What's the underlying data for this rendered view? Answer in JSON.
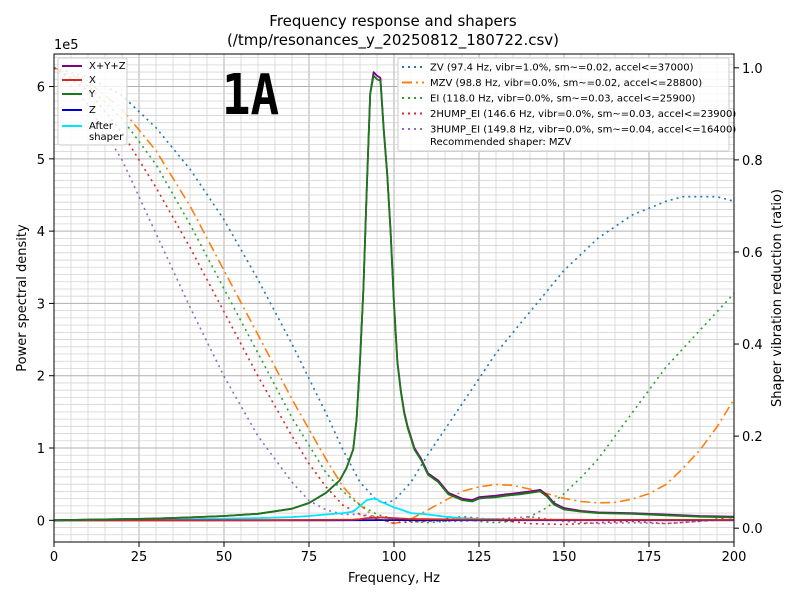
{
  "chart_data": {
    "type": "line",
    "title_line1": "Frequency response and shapers",
    "title_line2": "(/tmp/resonances_y_20250812_180722.csv)",
    "xlabel": "Frequency, Hz",
    "ylabel": "Power spectral density",
    "y2label": "Shaper vibration reduction (ratio)",
    "xlim": [
      0,
      200
    ],
    "ylim": [
      -0.3,
      6.45
    ],
    "y2lim": [
      -0.03,
      1.03
    ],
    "y_multiplier": "1e5",
    "annotation": "1A",
    "xticks": [
      "0",
      "25",
      "50",
      "75",
      "100",
      "125",
      "150",
      "175",
      "200"
    ],
    "xtick_values": [
      0,
      25,
      50,
      75,
      100,
      125,
      150,
      175,
      200
    ],
    "yticks": [
      "0",
      "1",
      "2",
      "3",
      "4",
      "5",
      "6"
    ],
    "ytick_values": [
      0,
      1,
      2,
      3,
      4,
      5,
      6
    ],
    "y2ticks": [
      "0.0",
      "0.2",
      "0.4",
      "0.6",
      "0.8",
      "1.0"
    ],
    "y2tick_values": [
      0,
      0.2,
      0.4,
      0.6,
      0.8,
      1.0
    ],
    "psd_legend": [
      {
        "label": "X+Y+Z",
        "color": "#800080"
      },
      {
        "label": "X",
        "color": "#d62728"
      },
      {
        "label": "Y",
        "color": "#1a7a1a"
      },
      {
        "label": "Z",
        "color": "#0000cc"
      },
      {
        "label": "After\nshaper",
        "color": "#00e5ff"
      }
    ],
    "shaper_legend": [
      {
        "label": "ZV (97.4 Hz, vibr=1.0%, sm~=0.02, accel<=37000)",
        "color": "#1f77b4",
        "dash": "dotted"
      },
      {
        "label": "MZV (98.8 Hz, vibr=0.0%, sm~=0.02, accel<=28800)",
        "color": "#ff7f0e",
        "dash": "dashdot"
      },
      {
        "label": "EI (118.0 Hz, vibr=0.0%, sm~=0.03, accel<=25900)",
        "color": "#2ca02c",
        "dash": "dotted"
      },
      {
        "label": "2HUMP_EI (146.6 Hz, vibr=0.0%, sm~=0.03, accel<=23900)",
        "color": "#d62728",
        "dash": "dotted"
      },
      {
        "label": "3HUMP_EI (149.8 Hz, vibr=0.0%, sm~=0.04, accel<=16400)",
        "color": "#9467bd",
        "dash": "dotted"
      }
    ],
    "recommended": "Recommended shaper: MZV",
    "series": [
      {
        "name": "X+Y+Z",
        "axis": "left",
        "color": "#800080",
        "x": [
          0,
          10,
          20,
          30,
          40,
          50,
          60,
          70,
          75,
          80,
          84,
          86,
          88,
          89,
          90,
          91,
          92,
          93,
          94,
          95,
          96,
          97,
          98,
          99,
          100,
          101,
          102,
          103,
          104,
          105,
          106,
          108,
          110,
          113,
          116,
          120,
          123,
          125,
          127,
          130,
          133,
          137,
          140,
          143,
          145,
          147,
          150,
          155,
          160,
          170,
          180,
          190,
          200
        ],
        "y": [
          0,
          0.01,
          0.015,
          0.025,
          0.04,
          0.06,
          0.09,
          0.16,
          0.24,
          0.38,
          0.55,
          0.72,
          0.98,
          1.4,
          2.2,
          3.2,
          4.6,
          5.9,
          6.2,
          6.15,
          6.12,
          5.4,
          4.8,
          4.0,
          3.0,
          2.2,
          1.8,
          1.5,
          1.3,
          1.15,
          1.0,
          0.85,
          0.65,
          0.55,
          0.38,
          0.3,
          0.28,
          0.32,
          0.33,
          0.34,
          0.36,
          0.38,
          0.4,
          0.42,
          0.35,
          0.24,
          0.17,
          0.13,
          0.11,
          0.1,
          0.08,
          0.06,
          0.05
        ]
      },
      {
        "name": "X",
        "axis": "left",
        "color": "#d62728",
        "x": [
          0,
          20,
          40,
          60,
          80,
          88,
          90,
          92,
          94,
          96,
          98,
          100,
          102,
          104,
          106,
          110,
          120,
          140,
          160,
          180,
          200
        ],
        "y": [
          0,
          0,
          0,
          0.002,
          0.005,
          0.01,
          0.015,
          0.03,
          0.035,
          0.04,
          0.035,
          0.03,
          0.025,
          0.02,
          0.018,
          0.015,
          0.01,
          0.008,
          0.006,
          0.005,
          0.004
        ]
      },
      {
        "name": "Y",
        "axis": "left",
        "color": "#1a7a1a",
        "x": [
          0,
          10,
          20,
          30,
          40,
          50,
          60,
          70,
          75,
          80,
          84,
          86,
          88,
          89,
          90,
          91,
          92,
          93,
          94,
          95,
          96,
          97,
          98,
          99,
          100,
          101,
          102,
          103,
          104,
          105,
          106,
          108,
          110,
          113,
          116,
          120,
          123,
          125,
          127,
          130,
          133,
          137,
          140,
          143,
          145,
          147,
          150,
          155,
          160,
          170,
          180,
          190,
          200
        ],
        "y": [
          0,
          0.01,
          0.015,
          0.025,
          0.04,
          0.06,
          0.09,
          0.16,
          0.24,
          0.38,
          0.55,
          0.72,
          0.98,
          1.4,
          2.2,
          3.2,
          4.6,
          5.9,
          6.15,
          6.1,
          6.08,
          5.38,
          4.78,
          3.98,
          2.98,
          2.18,
          1.78,
          1.48,
          1.28,
          1.13,
          0.98,
          0.83,
          0.63,
          0.53,
          0.36,
          0.28,
          0.26,
          0.3,
          0.31,
          0.32,
          0.34,
          0.36,
          0.38,
          0.4,
          0.33,
          0.22,
          0.15,
          0.12,
          0.1,
          0.09,
          0.07,
          0.05,
          0.04
        ]
      },
      {
        "name": "Z",
        "axis": "left",
        "color": "#0000cc",
        "x": [
          0,
          40,
          80,
          90,
          96,
          100,
          120,
          150,
          200
        ],
        "y": [
          0,
          0,
          0,
          0.002,
          0.003,
          0.003,
          0.002,
          0.002,
          0.001
        ]
      },
      {
        "name": "After shaper",
        "axis": "left",
        "color": "#00e5ff",
        "x": [
          0,
          20,
          40,
          60,
          70,
          75,
          80,
          85,
          88,
          90,
          92,
          94,
          95,
          96,
          98,
          100,
          102,
          105,
          110,
          115,
          120,
          125,
          130,
          135,
          140,
          145,
          150,
          160,
          170,
          180,
          190,
          200
        ],
        "y": [
          0,
          0.008,
          0.015,
          0.03,
          0.045,
          0.06,
          0.08,
          0.1,
          0.12,
          0.2,
          0.28,
          0.3,
          0.29,
          0.26,
          0.22,
          0.18,
          0.15,
          0.1,
          0.08,
          0.05,
          0.03,
          0.02,
          0.015,
          0.01,
          0.008,
          0.006,
          0.005,
          0.004,
          0.003,
          0.002,
          0.002,
          0.002
        ]
      },
      {
        "name": "ZV",
        "axis": "right",
        "color": "#1f77b4",
        "dash": "dotted",
        "x": [
          0,
          10,
          20,
          30,
          40,
          50,
          60,
          70,
          80,
          85,
          90,
          95,
          97,
          100,
          105,
          110,
          120,
          130,
          140,
          150,
          160,
          170,
          180,
          185,
          190,
          195,
          200
        ],
        "y": [
          1.0,
          0.98,
          0.94,
          0.87,
          0.78,
          0.67,
          0.54,
          0.4,
          0.25,
          0.17,
          0.1,
          0.06,
          0.055,
          0.06,
          0.1,
          0.16,
          0.27,
          0.38,
          0.47,
          0.56,
          0.63,
          0.68,
          0.71,
          0.72,
          0.72,
          0.72,
          0.71
        ]
      },
      {
        "name": "MZV",
        "axis": "right",
        "color": "#ff7f0e",
        "dash": "dashdot",
        "x": [
          0,
          10,
          20,
          30,
          40,
          50,
          60,
          70,
          80,
          85,
          90,
          95,
          100,
          105,
          110,
          115,
          120,
          125,
          130,
          135,
          140,
          145,
          150,
          155,
          160,
          165,
          170,
          175,
          180,
          185,
          190,
          195,
          200
        ],
        "y": [
          1.0,
          0.97,
          0.91,
          0.82,
          0.7,
          0.56,
          0.42,
          0.28,
          0.15,
          0.09,
          0.05,
          0.02,
          0.01,
          0.02,
          0.04,
          0.06,
          0.08,
          0.09,
          0.095,
          0.093,
          0.085,
          0.075,
          0.065,
          0.058,
          0.055,
          0.056,
          0.063,
          0.075,
          0.095,
          0.13,
          0.17,
          0.22,
          0.28
        ]
      },
      {
        "name": "EI",
        "axis": "right",
        "color": "#2ca02c",
        "dash": "dotted",
        "x": [
          0,
          10,
          20,
          30,
          40,
          50,
          60,
          70,
          80,
          85,
          90,
          95,
          100,
          105,
          110,
          115,
          120,
          125,
          130,
          135,
          140,
          145,
          150,
          155,
          160,
          165,
          170,
          175,
          180,
          185,
          190,
          195,
          200
        ],
        "y": [
          1.0,
          0.96,
          0.89,
          0.79,
          0.66,
          0.52,
          0.38,
          0.24,
          0.12,
          0.08,
          0.05,
          0.03,
          0.02,
          0.015,
          0.012,
          0.015,
          0.02,
          0.015,
          0.012,
          0.015,
          0.025,
          0.045,
          0.075,
          0.11,
          0.15,
          0.2,
          0.25,
          0.3,
          0.35,
          0.39,
          0.43,
          0.47,
          0.51
        ]
      },
      {
        "name": "2HUMP_EI",
        "axis": "right",
        "color": "#d62728",
        "dash": "dotted",
        "x": [
          0,
          10,
          20,
          30,
          40,
          50,
          60,
          70,
          75,
          80,
          85,
          90,
          95,
          100,
          110,
          115,
          120,
          130,
          140,
          150,
          160,
          170,
          180,
          190,
          200
        ],
        "y": [
          1.0,
          0.95,
          0.86,
          0.74,
          0.61,
          0.47,
          0.33,
          0.2,
          0.14,
          0.09,
          0.05,
          0.03,
          0.02,
          0.012,
          0.015,
          0.02,
          0.025,
          0.018,
          0.01,
          0.008,
          0.012,
          0.015,
          0.01,
          0.015,
          0.025
        ]
      },
      {
        "name": "3HUMP_EI",
        "axis": "right",
        "color": "#9467bd",
        "dash": "dotted",
        "x": [
          0,
          10,
          20,
          30,
          40,
          50,
          60,
          70,
          75,
          80,
          85,
          90,
          95,
          100,
          110,
          120,
          130,
          140,
          150,
          160,
          170,
          180,
          190,
          200
        ],
        "y": [
          1.0,
          0.92,
          0.8,
          0.64,
          0.48,
          0.33,
          0.2,
          0.1,
          0.06,
          0.04,
          0.03,
          0.03,
          0.025,
          0.02,
          0.015,
          0.015,
          0.02,
          0.025,
          0.015,
          0.01,
          0.012,
          0.01,
          0.015,
          0.02
        ]
      }
    ]
  }
}
